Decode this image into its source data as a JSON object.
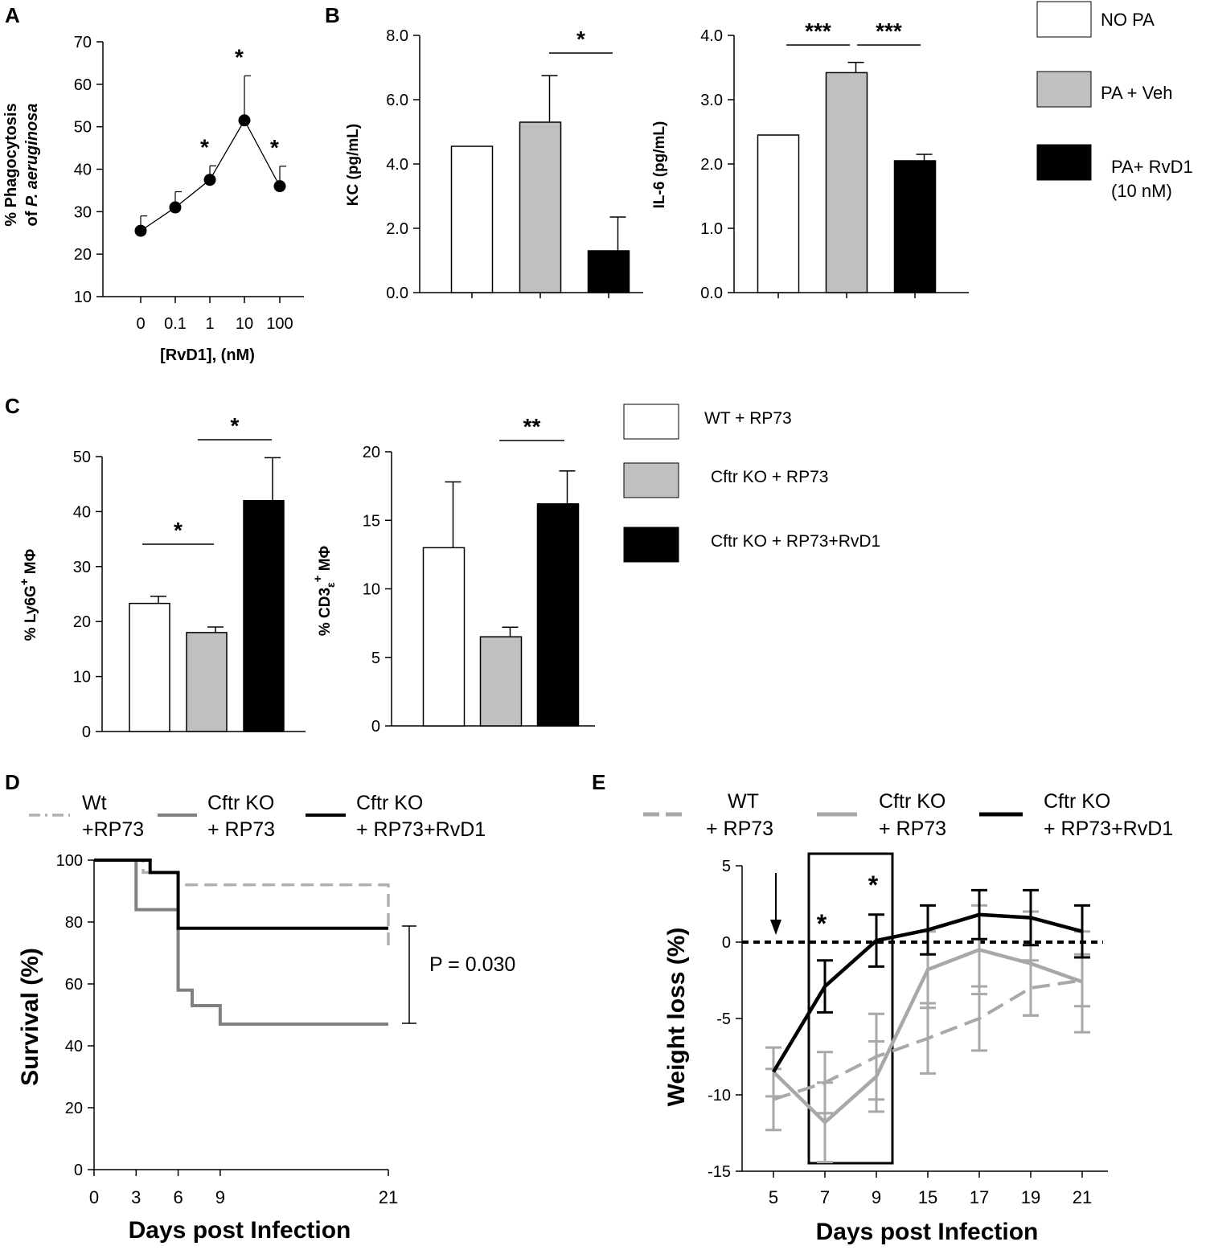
{
  "chart_data": [
    {
      "id": "A",
      "type": "line",
      "panel_label": "A",
      "ylabel": "% Phagocytosis of P. aeruginosa",
      "ylabel_lines": [
        "% Phagocytosis",
        "of P. aeruginosa"
      ],
      "xlabel": "[RvD1], (nM)",
      "categories": [
        "0",
        "0.1",
        "1",
        "10",
        "100"
      ],
      "values": [
        25.5,
        31,
        37.5,
        51.5,
        36
      ],
      "errors": [
        3.5,
        3.7,
        3.3,
        10.5,
        4.7
      ],
      "significance": [
        "",
        "",
        "*",
        "*",
        "*"
      ],
      "ylim": [
        10,
        70
      ],
      "yticks": [
        "10",
        "20",
        "30",
        "40",
        "50",
        "60",
        "70"
      ]
    },
    {
      "id": "B_KC",
      "type": "bar",
      "panel_label": "B",
      "ylabel": "KC (pg/mL)",
      "categories": [
        "NO PA",
        "PA + Veh",
        "PA+ RvD1 (10 nM)"
      ],
      "values": [
        4.55,
        5.3,
        1.3
      ],
      "errors": [
        0,
        1.45,
        1.05
      ],
      "ylim": [
        0,
        8
      ],
      "yticks": [
        "0.0",
        "2.0",
        "4.0",
        "6.0",
        "8.0"
      ],
      "brackets": [
        {
          "from": 1,
          "to": 2,
          "label": "*"
        }
      ]
    },
    {
      "id": "B_IL6",
      "type": "bar",
      "ylabel": "IL-6 (pg/mL)",
      "categories": [
        "NO PA",
        "PA + Veh",
        "PA+ RvD1 (10 nM)"
      ],
      "values": [
        2.45,
        3.42,
        2.05
      ],
      "errors": [
        0,
        0.16,
        0.1
      ],
      "ylim": [
        0,
        4
      ],
      "yticks": [
        "0.0",
        "1.0",
        "2.0",
        "3.0",
        "4.0"
      ],
      "brackets": [
        {
          "from": 0,
          "to": 1,
          "label": "***"
        },
        {
          "from": 1,
          "to": 2,
          "label": "***"
        }
      ]
    },
    {
      "id": "C_Ly6G",
      "type": "bar",
      "panel_label": "C",
      "ylabel": "% Ly6G+ MΦ",
      "ylabel_parts": {
        "base": "% Ly6G",
        "sup": "+",
        "rest": " MΦ"
      },
      "categories": [
        "WT + RP73",
        "Cftr KO + RP73",
        "Cftr KO + RP73+RvD1"
      ],
      "values": [
        23.3,
        18,
        42
      ],
      "errors": [
        1.3,
        1,
        7.8
      ],
      "ylim": [
        0,
        50
      ],
      "yticks": [
        "0",
        "10",
        "20",
        "30",
        "40",
        "50"
      ],
      "brackets": [
        {
          "from": 0,
          "to": 1,
          "label": "*"
        },
        {
          "from": 1,
          "to": 2,
          "label": "*"
        }
      ]
    },
    {
      "id": "C_CD3",
      "type": "bar",
      "ylabel": "% CD3ε+ MΦ",
      "ylabel_parts": {
        "base": "% CD3",
        "sub": "ε",
        "sup": "+",
        "rest": " MΦ"
      },
      "categories": [
        "WT + RP73",
        "Cftr KO + RP73",
        "Cftr KO + RP73+RvD1"
      ],
      "values": [
        13,
        6.5,
        16.2
      ],
      "errors": [
        4.8,
        0.7,
        2.4
      ],
      "ylim": [
        0,
        20
      ],
      "yticks": [
        "0",
        "5",
        "10",
        "15",
        "20"
      ],
      "brackets": [
        {
          "from": 1,
          "to": 2,
          "label": "**"
        }
      ]
    },
    {
      "id": "D",
      "type": "line",
      "panel_label": "D",
      "title": "",
      "xlabel": "Days post Infection",
      "ylabel": "Survival (%)",
      "xlim": [
        0,
        21
      ],
      "ylim": [
        0,
        100
      ],
      "xticks": [
        "0",
        "3",
        "6",
        "9",
        "21"
      ],
      "yticks": [
        "0",
        "20",
        "40",
        "60",
        "80",
        "100"
      ],
      "series": [
        {
          "name": "Wt +RP73",
          "legend_lines": [
            "Wt",
            "+RP73"
          ],
          "x": [
            0,
            3,
            3.5,
            6,
            21
          ],
          "y": [
            100,
            100,
            96,
            92,
            72
          ]
        },
        {
          "name": "Cftr KO + RP73",
          "legend_lines": [
            "Cftr KO",
            "+ RP73"
          ],
          "x": [
            0,
            3,
            6,
            7,
            9,
            21
          ],
          "y": [
            100,
            84,
            58,
            53,
            47,
            47
          ]
        },
        {
          "name": "Cftr KO + RP73+RvD1",
          "legend_lines": [
            "Cftr KO",
            "+ RP73+RvD1"
          ],
          "x": [
            0,
            4,
            6,
            21
          ],
          "y": [
            100,
            96,
            78,
            78
          ]
        }
      ],
      "annotation": "P = 0.030"
    },
    {
      "id": "E",
      "type": "line",
      "panel_label": "E",
      "xlabel": "Days post Infection",
      "ylabel": "Weight loss (%)",
      "categories": [
        "5",
        "7",
        "9",
        "15",
        "17",
        "19",
        "21"
      ],
      "ylim": [
        -15,
        5
      ],
      "yticks": [
        "-15",
        "-10",
        "-5",
        "0",
        "5"
      ],
      "series": [
        {
          "name": "WT + RP73",
          "legend_lines": [
            "WT",
            "+ RP73"
          ],
          "values": [
            -10.3,
            -9.2,
            -7.5,
            -6.3,
            -5.0,
            -3.0,
            -2.5
          ],
          "errors": [
            2.0,
            2.0,
            2.8,
            2.3,
            2.1,
            1.8,
            1.7
          ]
        },
        {
          "name": "Cftr KO + RP73",
          "legend_lines": [
            "Cftr KO",
            "+ RP73"
          ],
          "values": [
            -8.5,
            -11.8,
            -8.8,
            -1.8,
            -0.5,
            -1.4,
            -2.6
          ],
          "errors": [
            1.6,
            2.6,
            2.3,
            2.5,
            2.9,
            3.4,
            3.3
          ]
        },
        {
          "name": "Cftr KO + RP73+RvD1",
          "legend_lines": [
            "Cftr KO",
            "+ RP73+RvD1"
          ],
          "values": [
            -8.5,
            -2.9,
            0.1,
            0.8,
            1.8,
            1.6,
            0.7
          ],
          "errors": [
            0,
            1.7,
            1.7,
            1.6,
            1.6,
            1.8,
            1.7
          ]
        }
      ],
      "significance": [
        {
          "x": "7",
          "label": "*"
        },
        {
          "x": "9",
          "label": "*"
        }
      ],
      "baseline": 0
    }
  ],
  "legends": {
    "B": [
      {
        "label": "NO PA",
        "lines": [
          "NO PA"
        ],
        "color": "#ffffff"
      },
      {
        "label": "PA + Veh",
        "lines": [
          "PA + Veh"
        ],
        "color": "#c0c0c0"
      },
      {
        "label": "PA+ RvD1 (10 nM)",
        "lines": [
          "PA+ RvD1",
          "(10 nM)"
        ],
        "color": "#000000"
      }
    ],
    "C": [
      {
        "label": "WT + RP73",
        "lines": [
          "WT + RP73"
        ],
        "color": "#ffffff"
      },
      {
        "label": "Cftr KO + RP73",
        "lines": [
          "Cftr KO + RP73"
        ],
        "color": "#c0c0c0"
      },
      {
        "label": "Cftr KO + RP73+RvD1",
        "lines": [
          "Cftr KO + RP73+RvD1"
        ],
        "color": "#000000"
      }
    ]
  },
  "colors": {
    "white_bar": "#ffffff",
    "grey_bar": "#c0c0c0",
    "black_bar": "#000000",
    "wt_line": "#b0b0b0",
    "ko_line": "#808080",
    "rvd1_line": "#000000",
    "e_wt_line": "#a8a8a8",
    "e_ko_line": "#a8a8a8"
  }
}
